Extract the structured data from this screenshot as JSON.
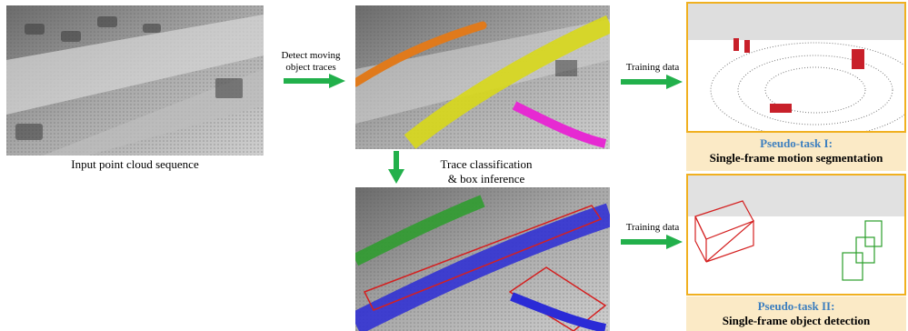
{
  "labels": {
    "input": "Input point cloud sequence",
    "detect_line1": "Detect moving",
    "detect_line2": "object traces",
    "training1": "Training data",
    "training2": "Training data",
    "trace_line1": "Trace classification",
    "trace_line2": "& box inference"
  },
  "tasks": [
    {
      "title": "Pseudo-task I:",
      "subtitle": "Single-frame motion segmentation"
    },
    {
      "title": "Pseudo-task II:",
      "subtitle": "Single-frame object detection"
    }
  ],
  "colors": {
    "arrow": "#22b04b",
    "trace_orange": "#e07a1c",
    "trace_yellow": "#d8d81a",
    "trace_magenta": "#e62ad2",
    "trace_green": "#2a9e2a",
    "trace_blue": "#2b2bd6",
    "box_red": "#d42020",
    "task_border": "#f0b020",
    "task_bg": "#fbeac6",
    "task_title": "#3d7fbf"
  }
}
